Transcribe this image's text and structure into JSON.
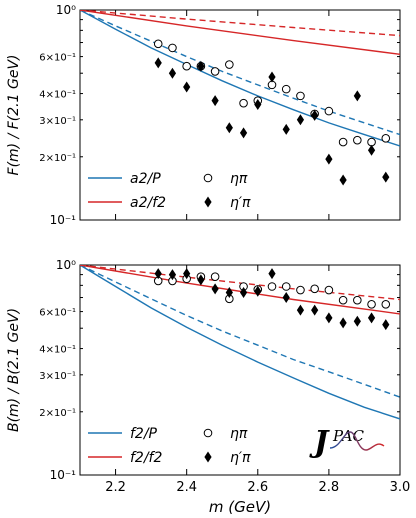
{
  "colors": {
    "blue": "#1f77b4",
    "red": "#d62728"
  },
  "x_axis": {
    "label": "m (GeV)",
    "ticks": [
      2.2,
      2.4,
      2.6,
      2.8,
      3.0
    ],
    "tick_labels": [
      "2.2",
      "2.4",
      "2.6",
      "2.8",
      "3.0"
    ],
    "range": [
      2.1,
      3.0
    ]
  },
  "logo_text": "JPAC",
  "chart_data": [
    {
      "type": "scatter",
      "ylabel": "F(m) / F(2.1 GeV)",
      "yscale": "log",
      "ylim": [
        0.1,
        1.0
      ],
      "y_tick_labels": [
        "10⁰",
        "6×10⁻¹",
        "4×10⁻¹",
        "3×10⁻¹",
        "2×10⁻¹",
        "10⁻¹"
      ],
      "legend_placement": "bottom-left",
      "lines": [
        {
          "name": "a2/P",
          "color": "blue",
          "style": "solid",
          "x": [
            2.1,
            2.2,
            2.3,
            2.4,
            2.5,
            2.6,
            2.7,
            2.8,
            2.9,
            3.0
          ],
          "y": [
            1.0,
            0.81,
            0.66,
            0.55,
            0.46,
            0.39,
            0.335,
            0.29,
            0.255,
            0.225
          ]
        },
        {
          "name": "",
          "color": "blue",
          "style": "dashed",
          "x": [
            2.1,
            2.2,
            2.3,
            2.4,
            2.5,
            2.6,
            2.7,
            2.8,
            2.9,
            3.0
          ],
          "y": [
            1.0,
            0.84,
            0.71,
            0.6,
            0.51,
            0.44,
            0.38,
            0.33,
            0.29,
            0.255
          ]
        },
        {
          "name": "a2/f2",
          "color": "red",
          "style": "solid",
          "x": [
            2.1,
            2.4,
            2.7,
            3.0
          ],
          "y": [
            1.0,
            0.84,
            0.715,
            0.615
          ]
        },
        {
          "name": "",
          "color": "red",
          "style": "dashed",
          "x": [
            2.1,
            2.4,
            2.7,
            3.0
          ],
          "y": [
            1.0,
            0.905,
            0.825,
            0.755
          ]
        }
      ],
      "series": [
        {
          "name": "ηπ",
          "marker": "open-circle",
          "x": [
            2.32,
            2.36,
            2.4,
            2.44,
            2.48,
            2.52,
            2.56,
            2.6,
            2.64,
            2.68,
            2.72,
            2.76,
            2.8,
            2.84,
            2.88,
            2.92,
            2.96
          ],
          "y": [
            0.69,
            0.66,
            0.54,
            0.54,
            0.51,
            0.55,
            0.36,
            0.37,
            0.44,
            0.42,
            0.39,
            0.32,
            0.33,
            0.235,
            0.24,
            0.235,
            0.245
          ]
        },
        {
          "name": "η′π",
          "marker": "filled-diamond",
          "x": [
            2.32,
            2.36,
            2.4,
            2.44,
            2.48,
            2.52,
            2.56,
            2.6,
            2.64,
            2.68,
            2.72,
            2.76,
            2.8,
            2.84,
            2.88,
            2.92,
            2.96
          ],
          "y": [
            0.56,
            0.5,
            0.43,
            0.54,
            0.37,
            0.275,
            0.26,
            0.355,
            0.48,
            0.27,
            0.3,
            0.315,
            0.195,
            0.155,
            0.39,
            0.215,
            0.16
          ]
        }
      ]
    },
    {
      "type": "scatter",
      "ylabel": "B(m) / B(2.1 GeV)",
      "xlabel": "m (GeV)",
      "yscale": "log",
      "ylim": [
        0.1,
        1.0
      ],
      "y_tick_labels": [
        "10⁰",
        "6×10⁻¹",
        "4×10⁻¹",
        "3×10⁻¹",
        "2×10⁻¹",
        "10⁻¹"
      ],
      "legend_placement": "bottom-left",
      "lines": [
        {
          "name": "f2/P",
          "color": "blue",
          "style": "solid",
          "x": [
            2.1,
            2.2,
            2.3,
            2.4,
            2.5,
            2.6,
            2.7,
            2.8,
            2.9,
            3.0
          ],
          "y": [
            1.0,
            0.79,
            0.625,
            0.505,
            0.415,
            0.345,
            0.29,
            0.245,
            0.21,
            0.185
          ]
        },
        {
          "name": "",
          "color": "blue",
          "style": "dashed",
          "x": [
            2.1,
            2.2,
            2.3,
            2.4,
            2.5,
            2.6,
            2.7,
            2.8,
            2.9,
            3.0
          ],
          "y": [
            1.0,
            0.83,
            0.69,
            0.575,
            0.485,
            0.415,
            0.355,
            0.31,
            0.27,
            0.235
          ]
        },
        {
          "name": "f2/f2",
          "color": "red",
          "style": "solid",
          "x": [
            2.1,
            2.4,
            2.7,
            3.0
          ],
          "y": [
            1.0,
            0.82,
            0.685,
            0.585
          ]
        },
        {
          "name": "",
          "color": "red",
          "style": "dashed",
          "x": [
            2.1,
            2.4,
            2.7,
            3.0
          ],
          "y": [
            1.0,
            0.875,
            0.77,
            0.685
          ]
        }
      ],
      "series": [
        {
          "name": "ηπ",
          "marker": "open-circle",
          "x": [
            2.32,
            2.36,
            2.4,
            2.44,
            2.48,
            2.52,
            2.56,
            2.6,
            2.64,
            2.68,
            2.72,
            2.76,
            2.8,
            2.84,
            2.88,
            2.92,
            2.96
          ],
          "y": [
            0.84,
            0.84,
            0.86,
            0.88,
            0.88,
            0.69,
            0.79,
            0.765,
            0.79,
            0.79,
            0.76,
            0.77,
            0.76,
            0.68,
            0.68,
            0.65,
            0.65
          ]
        },
        {
          "name": "η′π",
          "marker": "filled-diamond",
          "x": [
            2.32,
            2.36,
            2.4,
            2.44,
            2.48,
            2.52,
            2.56,
            2.6,
            2.64,
            2.68,
            2.72,
            2.76,
            2.8,
            2.84,
            2.88,
            2.92,
            2.96
          ],
          "y": [
            0.91,
            0.9,
            0.91,
            0.85,
            0.77,
            0.74,
            0.74,
            0.75,
            0.91,
            0.7,
            0.61,
            0.61,
            0.56,
            0.53,
            0.54,
            0.56,
            0.52
          ]
        }
      ]
    }
  ]
}
